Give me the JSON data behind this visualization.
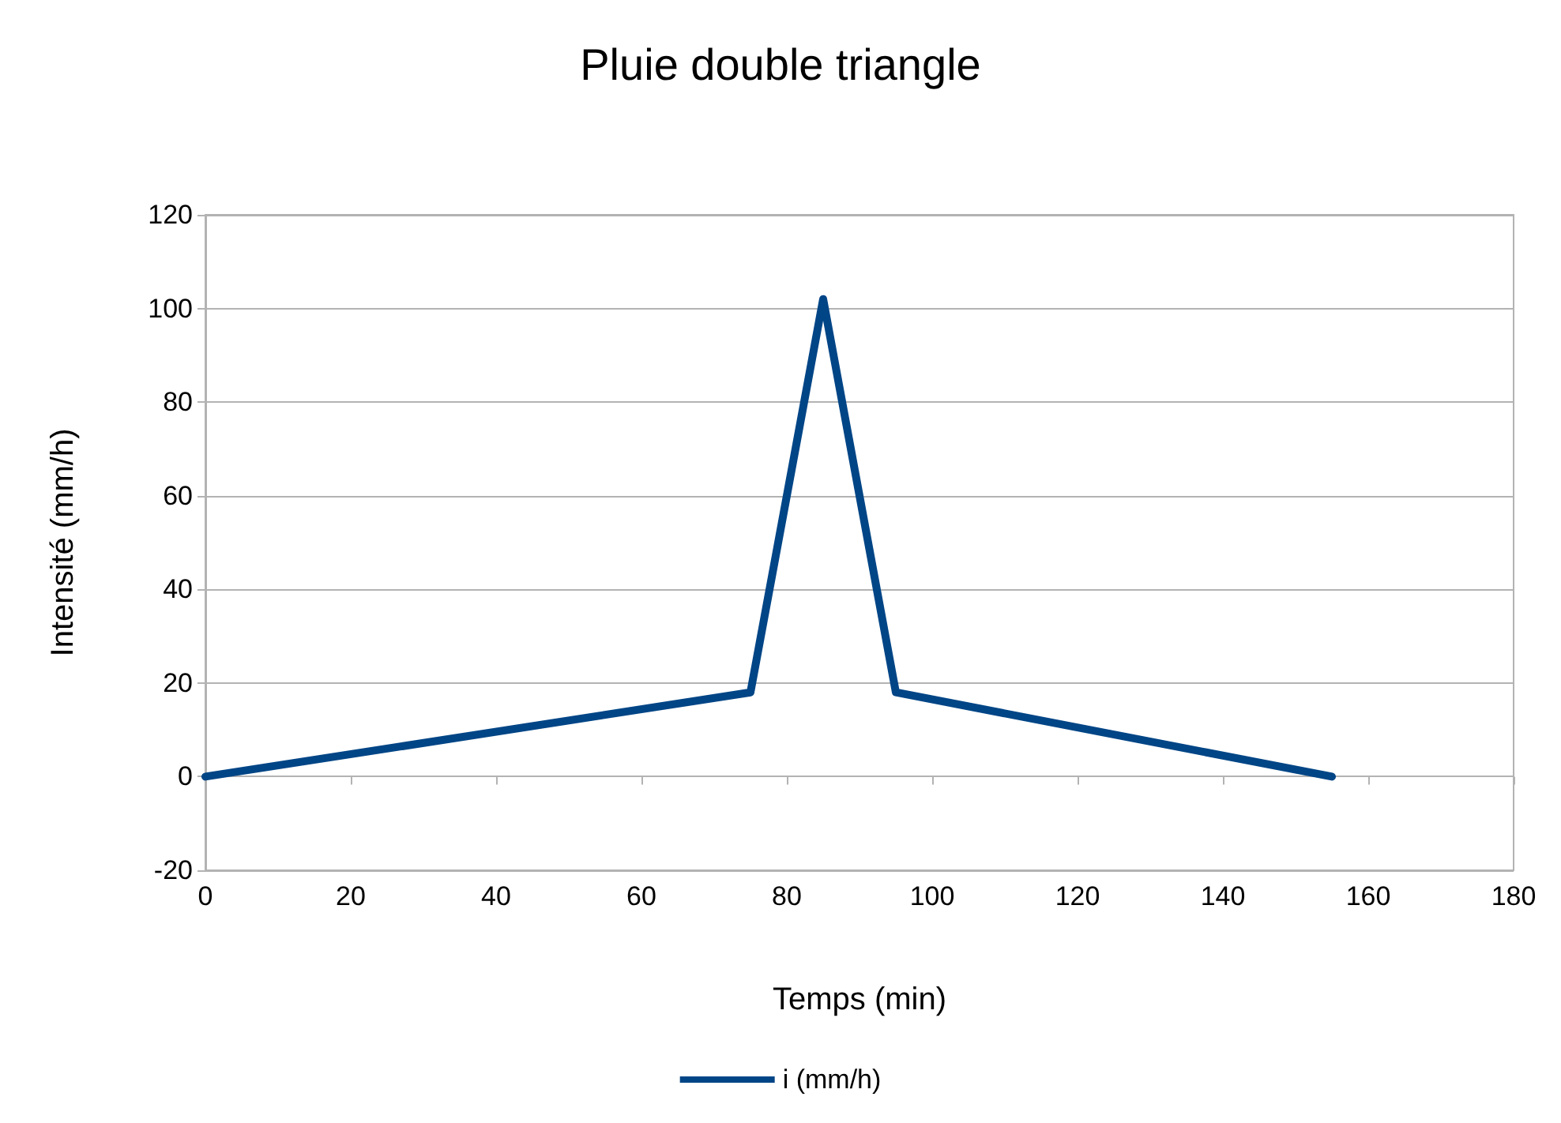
{
  "chart_data": {
    "type": "line",
    "title": "Pluie double triangle",
    "xlabel": "Temps (min)",
    "ylabel": "Intensité (mm/h)",
    "x": [
      0,
      75,
      85,
      95,
      155
    ],
    "series": [
      {
        "name": "i (mm/h)",
        "color": "#004586",
        "values": [
          0,
          18,
          102,
          18,
          0
        ]
      }
    ],
    "xlim": [
      0,
      180
    ],
    "xticks": [
      0,
      20,
      40,
      60,
      80,
      100,
      120,
      140,
      160,
      180
    ],
    "ylim": [
      -20,
      120
    ],
    "yticks": [
      -20,
      0,
      20,
      40,
      60,
      80,
      100,
      120
    ],
    "grid": "y",
    "legend": "bottom",
    "marker": "none",
    "line_style": "solid"
  }
}
